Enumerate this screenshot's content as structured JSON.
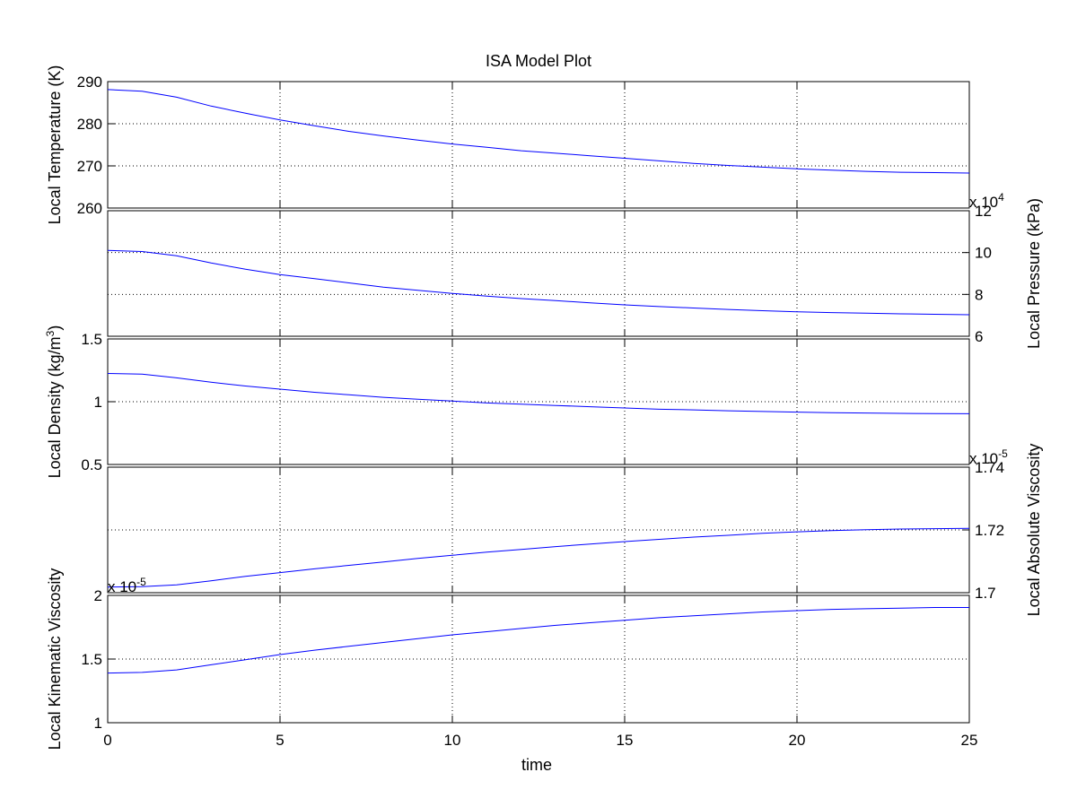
{
  "chart_data": {
    "type": "line",
    "title": "ISA Model Plot",
    "xlabel": "time",
    "xlim": [
      0,
      25
    ],
    "xticks": [
      0,
      5,
      10,
      15,
      20,
      25
    ],
    "grid": true,
    "line_color": "#0000ff",
    "x": [
      0,
      1,
      2,
      3,
      4,
      5,
      6,
      7,
      8,
      9,
      10,
      11,
      12,
      13,
      14,
      15,
      16,
      17,
      18,
      19,
      20,
      21,
      22,
      23,
      24,
      25
    ],
    "panels": [
      {
        "ylabel": "Local Temperature (K)",
        "side": "left",
        "ylim": [
          260,
          290
        ],
        "yticks": [
          260,
          270,
          280,
          290
        ],
        "tick_labels": [
          "260",
          "270",
          "280",
          "290"
        ],
        "exponent_label": "",
        "values": [
          288.1,
          287.7,
          286.3,
          284.2,
          282.5,
          280.9,
          279.5,
          278.2,
          277.1,
          276.1,
          275.2,
          274.4,
          273.6,
          273.0,
          272.4,
          271.8,
          271.2,
          270.6,
          270.1,
          269.7,
          269.3,
          269.0,
          268.7,
          268.5,
          268.4,
          268.3
        ]
      },
      {
        "ylabel": "Local Pressure (kPa)",
        "side": "right",
        "ylim": [
          6,
          12
        ],
        "yticks": [
          6,
          8,
          10,
          12
        ],
        "tick_labels": [
          "6",
          "8",
          "10",
          "12"
        ],
        "exponent_label": "x 10",
        "exponent_power": "4",
        "values": [
          10.1,
          10.05,
          9.85,
          9.5,
          9.2,
          8.95,
          8.75,
          8.55,
          8.35,
          8.2,
          8.05,
          7.92,
          7.8,
          7.7,
          7.6,
          7.5,
          7.42,
          7.35,
          7.28,
          7.22,
          7.17,
          7.13,
          7.1,
          7.07,
          7.05,
          7.03
        ]
      },
      {
        "ylabel": "Local Density (kg/m",
        "ylabel_sup": "3",
        "ylabel_end": ")",
        "side": "left",
        "ylim": [
          0.5,
          1.5
        ],
        "yticks": [
          0.5,
          1,
          1.5
        ],
        "tick_labels": [
          "0.5",
          "1",
          "1.5"
        ],
        "exponent_label": "",
        "values": [
          1.225,
          1.22,
          1.19,
          1.155,
          1.125,
          1.1,
          1.075,
          1.055,
          1.035,
          1.02,
          1.005,
          0.99,
          0.98,
          0.97,
          0.96,
          0.95,
          0.94,
          0.935,
          0.928,
          0.922,
          0.917,
          0.913,
          0.91,
          0.907,
          0.905,
          0.904
        ]
      },
      {
        "ylabel": "Local Absolute Viscosity",
        "side": "right",
        "ylim": [
          1.7,
          1.74
        ],
        "yticks": [
          1.7,
          1.72,
          1.74
        ],
        "tick_labels": [
          "1.7",
          "1.72",
          "1.74"
        ],
        "exponent_label": "x 10",
        "exponent_power": "-5",
        "values": [
          1.7018,
          1.7019,
          1.7025,
          1.7038,
          1.7052,
          1.7064,
          1.7076,
          1.7087,
          1.7098,
          1.7109,
          1.7119,
          1.7129,
          1.7138,
          1.7147,
          1.7155,
          1.7163,
          1.717,
          1.7177,
          1.7183,
          1.7189,
          1.7194,
          1.7198,
          1.7201,
          1.7203,
          1.7204,
          1.7205
        ]
      },
      {
        "ylabel": "Local Kinematic Viscosity",
        "side": "left",
        "ylim": [
          1,
          2
        ],
        "yticks": [
          1,
          1.5,
          2
        ],
        "tick_labels": [
          "1",
          "1.5",
          "2"
        ],
        "exponent_label": "x 10",
        "exponent_power": "-5",
        "values": [
          1.39,
          1.395,
          1.415,
          1.455,
          1.495,
          1.535,
          1.57,
          1.6,
          1.63,
          1.66,
          1.69,
          1.715,
          1.74,
          1.765,
          1.785,
          1.805,
          1.825,
          1.84,
          1.855,
          1.87,
          1.88,
          1.89,
          1.895,
          1.9,
          1.905,
          1.905
        ]
      }
    ]
  }
}
